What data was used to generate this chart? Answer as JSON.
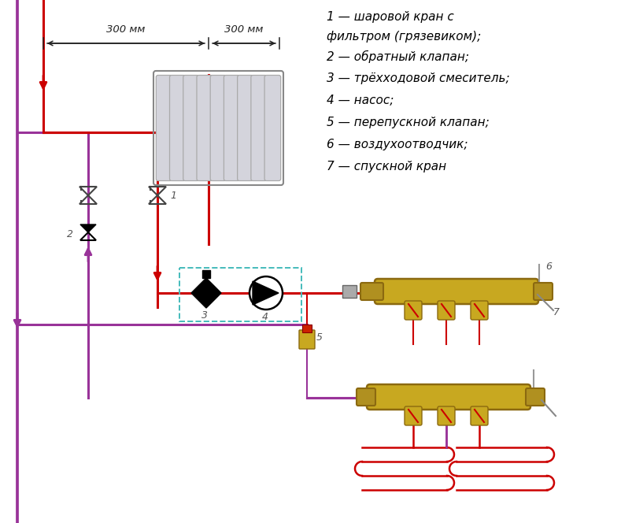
{
  "bg_color": "#ffffff",
  "red": "#cc0000",
  "red_dark": "#990000",
  "purple": "#993399",
  "gold_face": "#C8A820",
  "gold_edge": "#8B6910",
  "gold_mid": "#b09020",
  "teal": "#44bbbb",
  "gray_rad": "#c8c8d0",
  "gray_rad_edge": "#999999",
  "legend_lines": [
    "1 — шаровой кран с",
    "фильтром (грязевиком);",
    "2 — обратный клапан;",
    "3 — трёхходовой смеситель;",
    "4 — насос;",
    "5 — перепускной клапан;",
    "6 — воздухоотводчик;",
    "7 — спускной кран"
  ],
  "dim_text": "300 мм",
  "lw_pipe": 2.2,
  "lw_thin": 1.5,
  "lw_coil": 1.8
}
